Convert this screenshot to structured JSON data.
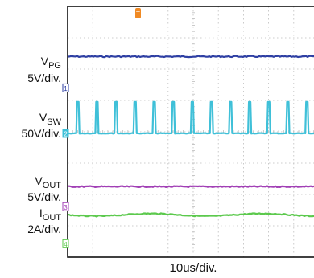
{
  "chart_data": {
    "type": "line",
    "title": "",
    "xlabel": "10us/div.",
    "ylabel": "",
    "grid": true,
    "divisions": {
      "x": 10,
      "y": 8
    },
    "trigger_marker": "T",
    "series": [
      {
        "name": "VPG",
        "label_main": "V",
        "label_sub": "PG",
        "scale": "5V/div.",
        "channel": "1",
        "color": "#2e3fa3",
        "shape": "flat",
        "level_div": 6.4
      },
      {
        "name": "VSW",
        "label_main": "V",
        "label_sub": "SW",
        "scale": "50V/div.",
        "channel": "2",
        "color": "#3fc0d8",
        "shape": "pulses",
        "level_div": 3.95,
        "pulse_height_div": 1.0,
        "pulse_period_div": 0.76
      },
      {
        "name": "VOUT",
        "label_main": "V",
        "label_sub": "OUT",
        "scale": "5V/div.",
        "channel": "3",
        "color": "#a13fb5",
        "shape": "flat",
        "level_div": 2.25
      },
      {
        "name": "IOUT",
        "label_main": "I",
        "label_sub": "OUT",
        "scale": "2A/div.",
        "channel": "4",
        "color": "#5cc94d",
        "shape": "ripple",
        "level_div": 1.35
      }
    ],
    "colors": {
      "trigger": "#f08a24",
      "border": "#111111",
      "grid": "#bdbdbd"
    }
  }
}
